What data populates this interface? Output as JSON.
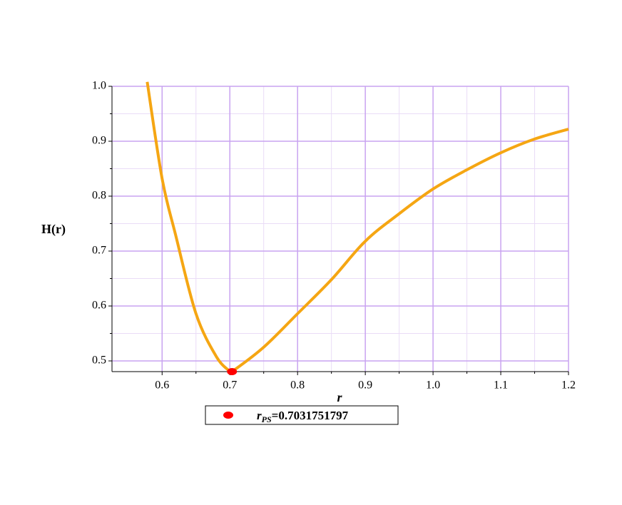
{
  "chart_data": {
    "type": "line",
    "xlabel": "r",
    "ylabel": "H(r)",
    "xlim": [
      0.526,
      1.2
    ],
    "ylim": [
      0.4805,
      1.0
    ],
    "xticks": [
      0.6,
      0.7,
      0.8,
      0.9,
      {
        "value": 1.0,
        "label": "1.0"
      },
      1.1,
      1.2
    ],
    "yticks": [
      0.5,
      0.6,
      0.7,
      0.8,
      0.9,
      {
        "value": 1.0,
        "label": "1.0"
      }
    ],
    "grid": true,
    "series": [
      {
        "color": "#f5a613",
        "x": [
          0.578,
          0.6,
          0.62,
          0.65,
          0.68,
          0.7,
          0.7032,
          0.75,
          0.8,
          0.85,
          0.9,
          0.95,
          1.0,
          1.05,
          1.1,
          1.15,
          1.2
        ],
        "values": [
          1.008,
          0.832,
          0.729,
          0.586,
          0.508,
          0.481,
          0.4805,
          0.525,
          0.586,
          0.648,
          0.718,
          0.768,
          0.813,
          0.848,
          0.879,
          0.904,
          0.922
        ]
      }
    ],
    "point": {
      "color": "#ff0000",
      "x": 0.7031751797,
      "y": 0.4805
    },
    "legend": {
      "symbol": "r",
      "subscript": "PS",
      "sign": "="
    }
  }
}
